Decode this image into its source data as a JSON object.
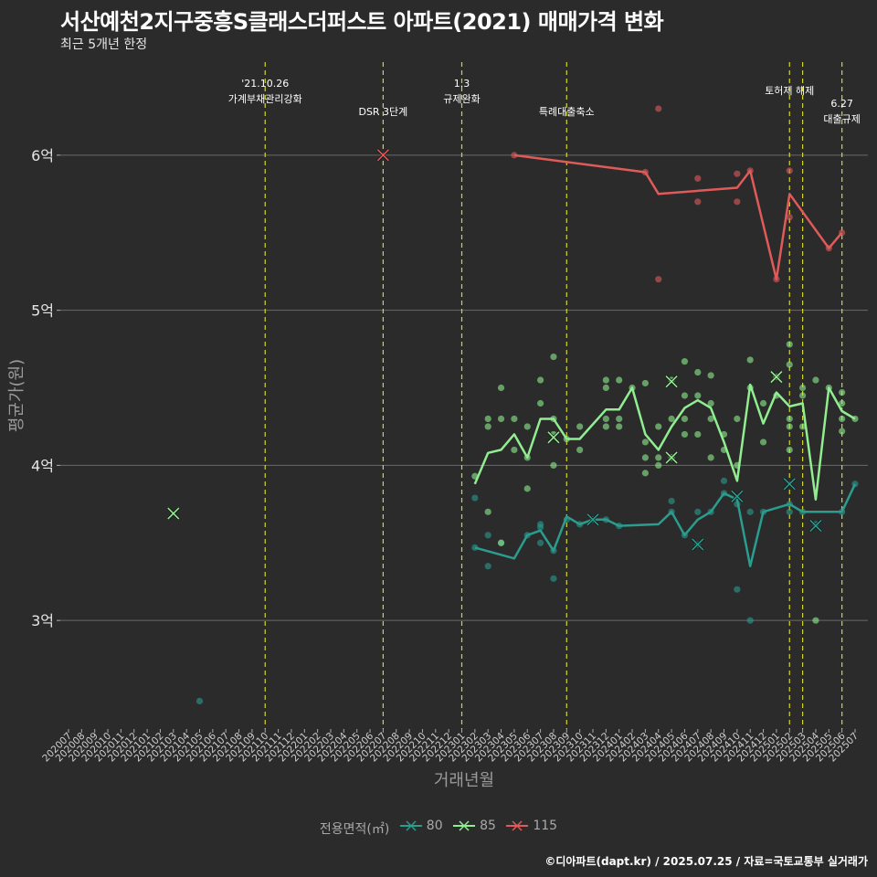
{
  "title": "서산예천2지구중흥S클래스더퍼스트 아파트(2021) 매매가격 변화",
  "subtitle": "최근 5개년 한정",
  "caption": "©디아파트(dapt.kr) / 2025.07.25 / 자료=국토교통부 실거래가",
  "chart_data": {
    "type": "line",
    "xlabel": "거래년월",
    "ylabel": "평균가(원)",
    "x_categories": [
      "202007",
      "202008",
      "202009",
      "202010",
      "202011",
      "202012",
      "202101",
      "202102",
      "202103",
      "202104",
      "202105",
      "202106",
      "202107",
      "202108",
      "202109",
      "202110",
      "202111",
      "202112",
      "202201",
      "202202",
      "202203",
      "202204",
      "202205",
      "202206",
      "202207",
      "202208",
      "202209",
      "202210",
      "202211",
      "202212",
      "202301",
      "202302",
      "202303",
      "202304",
      "202305",
      "202306",
      "202307",
      "202308",
      "202309",
      "202310",
      "202311",
      "202312",
      "202401",
      "202402",
      "202403",
      "202404",
      "202405",
      "202406",
      "202407",
      "202408",
      "202409",
      "202410",
      "202411",
      "202412",
      "202501",
      "202502",
      "202503",
      "202504",
      "202505",
      "202506",
      "202507"
    ],
    "ylim": [
      2.3,
      6.6
    ],
    "y_ticks": [
      {
        "value": 3,
        "label": "3억"
      },
      {
        "value": 4,
        "label": "4억"
      },
      {
        "value": 5,
        "label": "5억"
      },
      {
        "value": 6,
        "label": "6억"
      }
    ],
    "grid": true,
    "legend": {
      "title": "전용면적(㎡)",
      "position": "bottom"
    },
    "events": [
      {
        "x": "202110",
        "lines": [
          "'21.10.26",
          "가계부채관리강화"
        ]
      },
      {
        "x": "202207",
        "lines": [
          "DSR 3단계"
        ]
      },
      {
        "x": "202301",
        "lines": [
          "1.3",
          "규제완화"
        ]
      },
      {
        "x": "202309",
        "lines": [
          "특례대출축소"
        ]
      },
      {
        "x": "202502",
        "lines": [
          "토허제 해제"
        ]
      },
      {
        "x": "202503",
        "lines": []
      },
      {
        "x": "202506",
        "lines": [
          "6.27",
          "대출규제"
        ]
      }
    ],
    "series": [
      {
        "name": "80",
        "color": "#2a9d8f",
        "line": [
          [
            "202302",
            3.47
          ],
          [
            "202305",
            3.4
          ],
          [
            "202306",
            3.55
          ],
          [
            "202307",
            3.58
          ],
          [
            "202308",
            3.45
          ],
          [
            "202309",
            3.67
          ],
          [
            "202310",
            3.62
          ],
          [
            "202311",
            3.65
          ],
          [
            "202312",
            3.65
          ],
          [
            "202401",
            3.61
          ],
          [
            "202404",
            3.62
          ],
          [
            "202405",
            3.7
          ],
          [
            "202406",
            3.55
          ],
          [
            "202407",
            3.65
          ],
          [
            "202408",
            3.7
          ],
          [
            "202409",
            3.82
          ],
          [
            "202410",
            3.78
          ],
          [
            "202411",
            3.35
          ],
          [
            "202412",
            3.7
          ],
          [
            "202502",
            3.75
          ],
          [
            "202503",
            3.7
          ],
          [
            "202506",
            3.7
          ],
          [
            "202507",
            3.88
          ]
        ],
        "points": [
          [
            "202105",
            2.48
          ],
          [
            "202302",
            3.79
          ],
          [
            "202302",
            3.47
          ],
          [
            "202303",
            3.35
          ],
          [
            "202303",
            3.55
          ],
          [
            "202304",
            3.5
          ],
          [
            "202306",
            3.55
          ],
          [
            "202307",
            3.62
          ],
          [
            "202307",
            3.6
          ],
          [
            "202307",
            3.5
          ],
          [
            "202308",
            3.27
          ],
          [
            "202308",
            3.45
          ],
          [
            "202309",
            3.65
          ],
          [
            "202310",
            3.62
          ],
          [
            "202311",
            3.65
          ],
          [
            "202312",
            3.65
          ],
          [
            "202401",
            3.61
          ],
          [
            "202405",
            3.77
          ],
          [
            "202405",
            3.7
          ],
          [
            "202406",
            3.55
          ],
          [
            "202407",
            3.7
          ],
          [
            "202407",
            3.49
          ],
          [
            "202408",
            3.7
          ],
          [
            "202409",
            3.9
          ],
          [
            "202409",
            3.82
          ],
          [
            "202410",
            3.75
          ],
          [
            "202410",
            3.2
          ],
          [
            "202411",
            3.0
          ],
          [
            "202411",
            3.7
          ],
          [
            "202412",
            3.7
          ],
          [
            "202502",
            3.75
          ],
          [
            "202502",
            3.7
          ],
          [
            "202503",
            3.7
          ],
          [
            "202504",
            3.62
          ],
          [
            "202506",
            3.7
          ],
          [
            "202507",
            3.88
          ]
        ],
        "crosses": [
          [
            "202311",
            3.65
          ],
          [
            "202407",
            3.49
          ],
          [
            "202410",
            3.8
          ],
          [
            "202502",
            3.88
          ],
          [
            "202504",
            3.61
          ]
        ]
      },
      {
        "name": "85",
        "color": "#90ee90",
        "line": [
          [
            "202302",
            3.88
          ],
          [
            "202303",
            4.08
          ],
          [
            "202304",
            4.1
          ],
          [
            "202305",
            4.2
          ],
          [
            "202306",
            4.05
          ],
          [
            "202307",
            4.3
          ],
          [
            "202308",
            4.3
          ],
          [
            "202309",
            4.17
          ],
          [
            "202310",
            4.17
          ],
          [
            "202312",
            4.36
          ],
          [
            "202401",
            4.36
          ],
          [
            "202402",
            4.5
          ],
          [
            "202403",
            4.2
          ],
          [
            "202404",
            4.1
          ],
          [
            "202405",
            4.25
          ],
          [
            "202406",
            4.37
          ],
          [
            "202407",
            4.42
          ],
          [
            "202408",
            4.37
          ],
          [
            "202409",
            4.15
          ],
          [
            "202410",
            3.9
          ],
          [
            "202411",
            4.52
          ],
          [
            "202412",
            4.27
          ],
          [
            "202501",
            4.47
          ],
          [
            "202502",
            4.38
          ],
          [
            "202503",
            4.4
          ],
          [
            "202504",
            3.78
          ],
          [
            "202505",
            4.5
          ],
          [
            "202506",
            4.35
          ],
          [
            "202507",
            4.3
          ]
        ],
        "points": [
          [
            "202302",
            3.93
          ],
          [
            "202303",
            4.25
          ],
          [
            "202303",
            4.3
          ],
          [
            "202303",
            3.7
          ],
          [
            "202304",
            4.5
          ],
          [
            "202304",
            4.3
          ],
          [
            "202304",
            3.5
          ],
          [
            "202305",
            4.3
          ],
          [
            "202305",
            4.1
          ],
          [
            "202306",
            4.25
          ],
          [
            "202306",
            4.05
          ],
          [
            "202306",
            3.85
          ],
          [
            "202307",
            4.55
          ],
          [
            "202307",
            4.4
          ],
          [
            "202308",
            4.7
          ],
          [
            "202308",
            4.3
          ],
          [
            "202308",
            4.0
          ],
          [
            "202308",
            4.2
          ],
          [
            "202309",
            4.17
          ],
          [
            "202310",
            4.25
          ],
          [
            "202310",
            4.1
          ],
          [
            "202312",
            4.55
          ],
          [
            "202312",
            4.5
          ],
          [
            "202312",
            4.3
          ],
          [
            "202312",
            4.25
          ],
          [
            "202401",
            4.55
          ],
          [
            "202401",
            4.3
          ],
          [
            "202401",
            4.25
          ],
          [
            "202402",
            4.5
          ],
          [
            "202403",
            4.53
          ],
          [
            "202403",
            4.15
          ],
          [
            "202403",
            4.05
          ],
          [
            "202403",
            3.95
          ],
          [
            "202404",
            4.25
          ],
          [
            "202404",
            4.05
          ],
          [
            "202404",
            4.0
          ],
          [
            "202405",
            4.55
          ],
          [
            "202405",
            4.3
          ],
          [
            "202405",
            4.05
          ],
          [
            "202406",
            4.67
          ],
          [
            "202406",
            4.45
          ],
          [
            "202406",
            4.3
          ],
          [
            "202406",
            4.2
          ],
          [
            "202407",
            4.6
          ],
          [
            "202407",
            4.45
          ],
          [
            "202407",
            4.2
          ],
          [
            "202408",
            4.58
          ],
          [
            "202408",
            4.4
          ],
          [
            "202408",
            4.3
          ],
          [
            "202408",
            4.05
          ],
          [
            "202409",
            4.2
          ],
          [
            "202409",
            4.1
          ],
          [
            "202410",
            4.3
          ],
          [
            "202410",
            4.0
          ],
          [
            "202411",
            4.68
          ],
          [
            "202411",
            4.5
          ],
          [
            "202412",
            4.4
          ],
          [
            "202412",
            4.15
          ],
          [
            "202501",
            4.57
          ],
          [
            "202501",
            4.45
          ],
          [
            "202502",
            4.78
          ],
          [
            "202502",
            4.65
          ],
          [
            "202502",
            4.3
          ],
          [
            "202502",
            4.25
          ],
          [
            "202502",
            4.1
          ],
          [
            "202503",
            4.5
          ],
          [
            "202503",
            4.45
          ],
          [
            "202503",
            4.25
          ],
          [
            "202504",
            4.55
          ],
          [
            "202504",
            3.0
          ],
          [
            "202505",
            4.5
          ],
          [
            "202506",
            4.47
          ],
          [
            "202506",
            4.4
          ],
          [
            "202506",
            4.3
          ],
          [
            "202506",
            4.22
          ],
          [
            "202507",
            4.3
          ]
        ],
        "crosses": [
          [
            "202103",
            3.69
          ],
          [
            "202308",
            4.18
          ],
          [
            "202405",
            4.54
          ],
          [
            "202405",
            4.05
          ],
          [
            "202501",
            4.57
          ]
        ]
      },
      {
        "name": "115",
        "color": "#e05a5a",
        "line": [
          [
            "202305",
            6.0
          ],
          [
            "202403",
            5.89
          ],
          [
            "202404",
            5.75
          ],
          [
            "202410",
            5.79
          ],
          [
            "202411",
            5.9
          ],
          [
            "202501",
            5.2
          ],
          [
            "202502",
            5.75
          ],
          [
            "202505",
            5.4
          ],
          [
            "202506",
            5.5
          ]
        ],
        "points": [
          [
            "202305",
            6.0
          ],
          [
            "202403",
            5.89
          ],
          [
            "202404",
            6.3
          ],
          [
            "202404",
            5.2
          ],
          [
            "202407",
            5.85
          ],
          [
            "202407",
            5.7
          ],
          [
            "202410",
            5.88
          ],
          [
            "202410",
            5.7
          ],
          [
            "202411",
            5.9
          ],
          [
            "202501",
            5.2
          ],
          [
            "202502",
            5.9
          ],
          [
            "202502",
            5.6
          ],
          [
            "202505",
            5.4
          ],
          [
            "202506",
            5.5
          ]
        ],
        "crosses": [
          [
            "202207",
            6.0
          ]
        ]
      }
    ]
  }
}
